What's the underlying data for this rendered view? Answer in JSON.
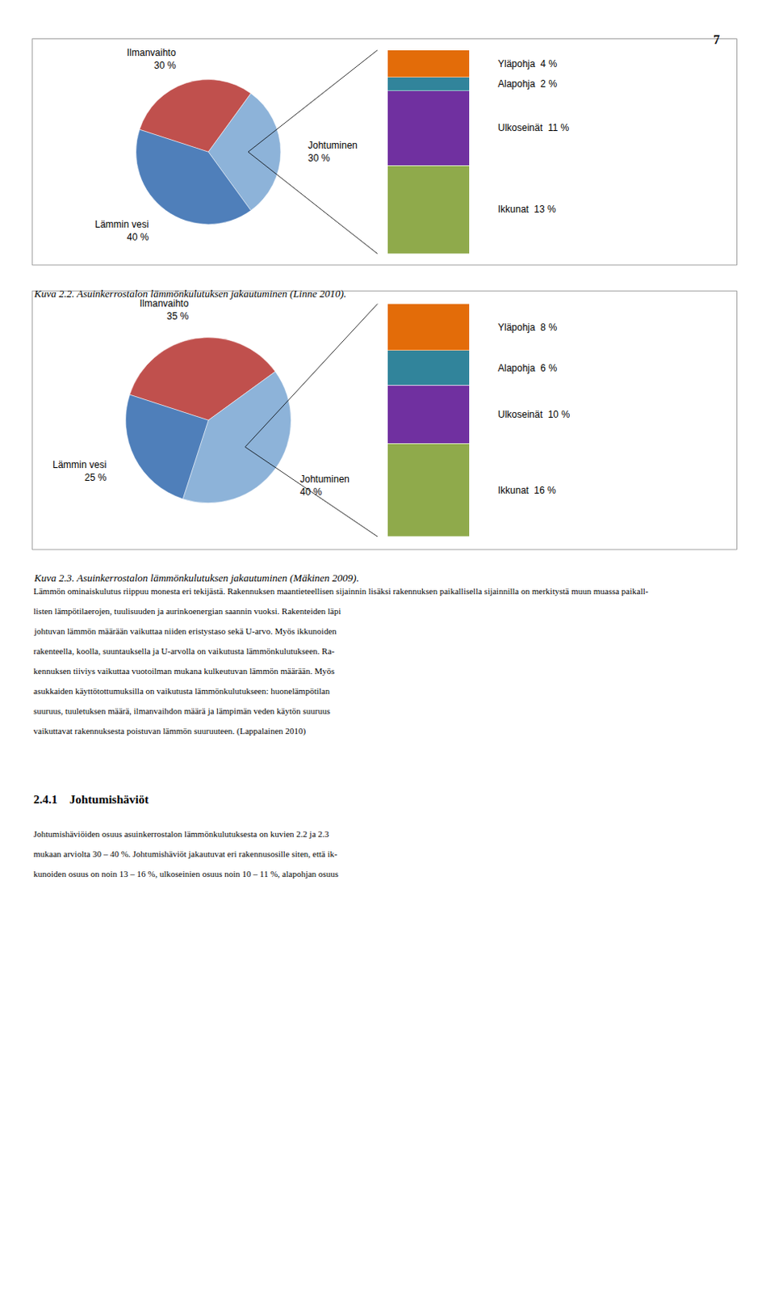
{
  "chart_data": [
    {
      "type": "pie",
      "title": "Kuva 2.2. Asuinkerrostalon lämmönkulutuksen jakautuminen (Linne 2010).",
      "categories": [
        "Ilmanvaihto",
        "Johtuminen",
        "Lämmin vesi"
      ],
      "values": [
        30,
        30,
        40
      ],
      "value_labels": [
        "30 %",
        "30 %",
        "40 %"
      ],
      "colors": [
        "#c0504d",
        "#8db3d9",
        "#4f7fba"
      ],
      "data_labels": true
    },
    {
      "type": "bar",
      "stacked": true,
      "categories": [
        null
      ],
      "series": [
        {
          "name": "Ikkunat",
          "color": "#8faa4b",
          "values": [
            13
          ],
          "value_labels": [
            "13 %"
          ]
        },
        {
          "name": "Ulkoseinät",
          "color": "#7030a0",
          "values": [
            11
          ],
          "value_labels": [
            "11 %"
          ]
        },
        {
          "name": "Alapohja",
          "color": "#31849b",
          "values": [
            2
          ],
          "value_labels": [
            "2 %"
          ]
        },
        {
          "name": "Yläpohja",
          "color": "#e36c09",
          "values": [
            4
          ],
          "value_labels": [
            "4 %"
          ]
        }
      ],
      "ylim": [
        0,
        30
      ],
      "tick_labels": false,
      "data_labels": true
    },
    {
      "type": "pie",
      "title": "Kuva 2.3. Asuinkerrostalon lämmönkulutuksen jakautuminen (Mäkinen 2009).",
      "categories": [
        "Ilmanvaihto",
        "Johtuminen",
        "Lämmin vesi"
      ],
      "values": [
        35,
        40,
        25
      ],
      "value_labels": [
        "35 %",
        "40 %",
        "25 %"
      ],
      "colors": [
        "#c0504d",
        "#8db3d9",
        "#4f7fba"
      ],
      "data_labels": true
    },
    {
      "type": "bar",
      "stacked": true,
      "categories": [
        null
      ],
      "series": [
        {
          "name": "Ikkunat",
          "color": "#8faa4b",
          "values": [
            16
          ],
          "value_labels": [
            "16 %"
          ]
        },
        {
          "name": "Ulkoseinät",
          "color": "#7030a0",
          "values": [
            10
          ],
          "value_labels": [
            "10 %"
          ]
        },
        {
          "name": "Alapohja",
          "color": "#31849b",
          "values": [
            6
          ],
          "value_labels": [
            "6 %"
          ]
        },
        {
          "name": "Yläpohja",
          "color": "#e36c09",
          "values": [
            8
          ],
          "value_labels": [
            "8 %"
          ]
        }
      ],
      "ylim": [
        0,
        40
      ],
      "tick_labels": false,
      "data_labels": true
    }
  ],
  "annotations": [
    "7",
    "Lämmön ominaiskulutus riippuu monesta eri tekijästä. Rakennuksen maantieteellisen sijainnin lisäksi rakennuksen paikallisella sijainnilla on merkitystä muun muassa paikall-\nlisten lämpötilaerojen, tuulisuuden ja aurinkoenergian saannin vuoksi. Rakenteiden läpi\njohtuvan lämmön määrään vaikuttaa niiden eristystaso sekä U-arvo. Myös ikkunoiden\nrakenteella, koolla, suuntauksella ja U-arvolla on vaikutusta lämmönkulutukseen. Ra-\nkennuksen tiiviys vaikuttaa vuotoilman mukana kulkeutuvan lämmön määrään. Myös\nasukkaiden käyttötottumuksilla on vaikutusta lämmönkulutukseen: huonelämpötilan\nsuuruus, tuuletuksen määrä, ilmanvaihdon määrä ja lämpimän veden käytön suuruus\nvaikuttavat rakennuksesta poistuvan lämmön suuruuteen. (Lappalainen 2010)",
    "2.4.1 Johtumishäviöt",
    "Johtumishäviöiden osuus asuinkerrostalon lämmönkulutuksesta on kuvien 2.2 ja 2.3\nmukaan arviolta 30 – 40 %. Johtumishäviöt jakautuvat eri rakennusosille siten, että ik-\nkunoiden osuus on noin 13 – 16 %, ulkoseinien osuus noin 10 – 11 %, alapohjan osuus"
  ]
}
